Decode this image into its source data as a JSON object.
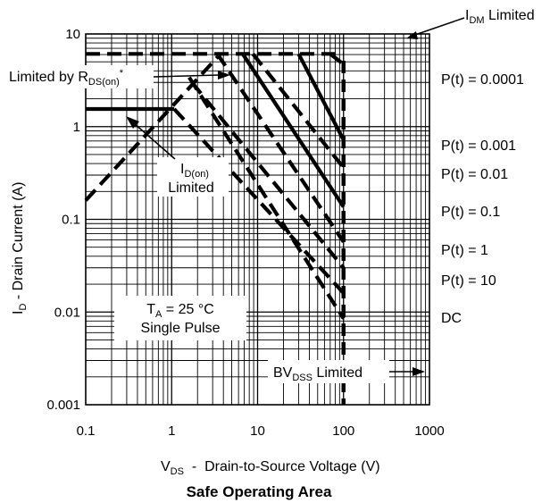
{
  "chart_data": {
    "type": "line",
    "title": "Safe Operating Area",
    "xscale": "log",
    "yscale": "log",
    "xlim": [
      0.1,
      1000
    ],
    "ylim": [
      0.001,
      10
    ],
    "xlabel": {
      "prefix": "V",
      "sub": "DS",
      "rest": "  -  Drain-to-Source Voltage (V)"
    },
    "ylabel": {
      "prefix": "I",
      "sub": "D",
      "rest": " - Drain Current (A)"
    },
    "xticks": [
      {
        "value": 0.1,
        "label": "0.1"
      },
      {
        "value": 1,
        "label": "1"
      },
      {
        "value": 10,
        "label": "10"
      },
      {
        "value": 100,
        "label": "100"
      },
      {
        "value": 1000,
        "label": "1000"
      }
    ],
    "yticks": [
      {
        "value": 10,
        "label": "10"
      },
      {
        "value": 1,
        "label": "1"
      },
      {
        "value": 0.1,
        "label": "0.1"
      },
      {
        "value": 0.01,
        "label": "0.01"
      },
      {
        "value": 0.001,
        "label": "0.001"
      }
    ],
    "grid": true,
    "bvdss_voltage": 100,
    "series": [
      {
        "name": "I_DM Limited",
        "style": "dashed",
        "x": [
          0.1,
          100
        ],
        "y": [
          6.1,
          6.1
        ]
      },
      {
        "name": "Limited by R_DS(on)*",
        "style": "dashed",
        "x": [
          0.1,
          3.7
        ],
        "y": [
          0.16,
          6.1
        ]
      },
      {
        "name": "I_D(on) Limited",
        "style": "solid",
        "x": [
          0.1,
          1.07
        ],
        "y": [
          1.55,
          1.55
        ]
      },
      {
        "name": "P(t) = 0.0001",
        "style": "dashed",
        "x": [
          70,
          100
        ],
        "y": [
          6.1,
          4.7
        ]
      },
      {
        "name": "P(t) = 0.0001",
        "style": "solid",
        "x": [
          30,
          100
        ],
        "y": [
          6.1,
          0.72
        ]
      },
      {
        "name": "P(t) = 0.001",
        "style": "dashed",
        "x": [
          8.8,
          100
        ],
        "y": [
          6.1,
          0.36
        ]
      },
      {
        "name": "P(t) = 0.01",
        "style": "solid",
        "x": [
          6.7,
          100
        ],
        "y": [
          6.1,
          0.136
        ]
      },
      {
        "name": "P(t) = 0.1",
        "style": "dashed",
        "x": [
          3.4,
          100
        ],
        "y": [
          6.1,
          0.057
        ]
      },
      {
        "name": "P(t) = 1",
        "style": "dashed",
        "x": [
          1.72,
          100
        ],
        "y": [
          3.0,
          0.03
        ]
      },
      {
        "name": "P(t) = 10",
        "style": "dashed",
        "x": [
          1.07,
          100
        ],
        "y": [
          1.55,
          0.016
        ]
      },
      {
        "name": "DC",
        "style": "dashed",
        "x": [
          1.6,
          100
        ],
        "y": [
          3.4,
          0.0085
        ]
      }
    ],
    "annotations": {
      "idm": {
        "base": "I",
        "sub": "DM",
        "rest": " Limited"
      },
      "rds": {
        "prefix": "Limited by R",
        "sub": "DS(on)",
        "sup": "*"
      },
      "idon": {
        "base": "I",
        "sub": "D(on)",
        "line2": "Limited"
      },
      "ta": {
        "base": "T",
        "sub": "A",
        "rest": " = 25 °C",
        "line2": "Single Pulse"
      },
      "bvdss": {
        "base": "BV",
        "sub": "DSS",
        "rest": " Limited"
      },
      "pt_labels": [
        "P(t) = 0.0001",
        "P(t) = 0.001",
        "P(t) = 0.01",
        "P(t) = 0.1",
        "P(t) = 1",
        "P(t) = 10",
        "DC"
      ]
    }
  }
}
